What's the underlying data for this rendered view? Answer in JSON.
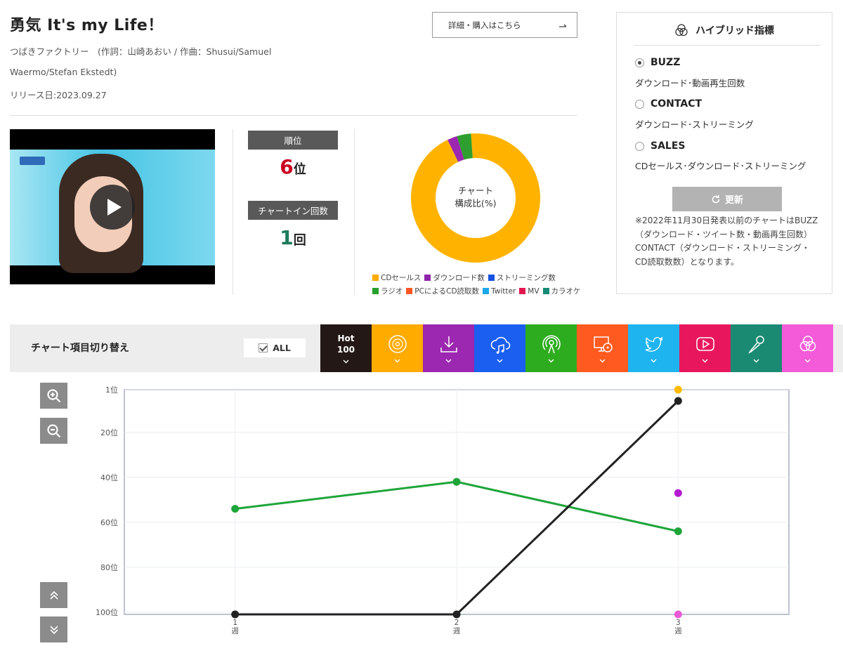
{
  "song": {
    "title": "勇気 It's my Life！",
    "credits_line1": "つばきファクトリー　(作詞：山崎あおい / 作曲：Shusui/Samuel",
    "credits_line2": "Waermo/Stefan Ekstedt)",
    "release": "リリース日:2023.09.27"
  },
  "buy_button": {
    "label": "詳細・購入はこちら",
    "icon": "arrow-icon"
  },
  "video": {
    "icon": "play-icon"
  },
  "rank": {
    "label": "順位",
    "value": "6",
    "unit": "位",
    "color": "#cc0022"
  },
  "chart_in": {
    "label": "チャートイン回数",
    "value": "1",
    "unit": "回",
    "color": "#1d7a5c"
  },
  "donut": {
    "center_line1": "チャート",
    "center_line2": "構成比(%)",
    "segments": [
      {
        "name": "CDセールス",
        "color": "#ffb300",
        "value": 94
      },
      {
        "name": "ダウンロード数",
        "color": "#9c27b0",
        "value": 2.5
      },
      {
        "name": "ラジオ",
        "color": "#2e9e2e",
        "value": 3.5
      }
    ],
    "legend": [
      {
        "label": "CDセールス",
        "color": "#ffab00"
      },
      {
        "label": "ダウンロード数",
        "color": "#8e24aa"
      },
      {
        "label": "ストリーミング数",
        "color": "#1550e0"
      },
      {
        "label": "ラジオ",
        "color": "#25a02b"
      },
      {
        "label": "PCによるCD読取数",
        "color": "#ff5722"
      },
      {
        "label": "Twitter",
        "color": "#1ea7e8"
      },
      {
        "label": "MV",
        "color": "#e2164f"
      },
      {
        "label": "カラオケ",
        "color": "#178a76"
      }
    ]
  },
  "hybrid": {
    "title": "ハイブリッド指標",
    "options": [
      {
        "label": "BUZZ",
        "desc": "ダウンロード･動画再生回数",
        "selected": true
      },
      {
        "label": "CONTACT",
        "desc": "ダウンロード･ストリーミング",
        "selected": false
      },
      {
        "label": "SALES",
        "desc": "CDセールス･ダウンロード･ストリーミング",
        "selected": false
      }
    ],
    "refresh_label": "更新",
    "note": "※2022年11月30日発表以前のチャートはBUZZ（ダウンロード・ツイート数・動画再生回数）CONTACT（ダウンロード・ストリーミング・CD読取数数）となります。"
  },
  "toolbar": {
    "label": "チャート項目切り替え",
    "all_label": "ALL",
    "tabs": [
      {
        "name": "hot100",
        "line1": "Hot",
        "line2": "100",
        "color": "#231815",
        "icon": "hot100-text"
      },
      {
        "name": "cd-sales",
        "color": "#ffab00",
        "icon": "disc-icon"
      },
      {
        "name": "download",
        "color": "#9c27b0",
        "icon": "download-icon"
      },
      {
        "name": "streaming",
        "color": "#1a5ff0",
        "icon": "cloud-music-icon"
      },
      {
        "name": "radio",
        "color": "#2eac1f",
        "icon": "radio-icon"
      },
      {
        "name": "pc-cd-read",
        "color": "#ff5a1f",
        "icon": "pc-disc-icon"
      },
      {
        "name": "twitter",
        "color": "#1eb4f0",
        "icon": "twitter-icon"
      },
      {
        "name": "mv",
        "color": "#e8175d",
        "icon": "video-play-icon"
      },
      {
        "name": "karaoke",
        "color": "#1a8a72",
        "icon": "microphone-icon"
      },
      {
        "name": "hybrid",
        "color": "#f35bd8",
        "icon": "hybrid-icon"
      }
    ]
  },
  "zoom": {
    "in_icon": "zoom-in-icon",
    "out_icon": "zoom-out-icon",
    "up_icon": "double-chevron-up-icon",
    "down_icon": "double-chevron-down-icon"
  },
  "chart_data": {
    "type": "line",
    "x": [
      1,
      2,
      3
    ],
    "x_tick_labels": [
      [
        "1",
        "週"
      ],
      [
        "2",
        "週"
      ],
      [
        "3",
        "週"
      ]
    ],
    "y_tick_labels": [
      "1位",
      "20位",
      "40位",
      "60位",
      "80位",
      "100位"
    ],
    "y_ticks": [
      1,
      20,
      40,
      60,
      80,
      100
    ],
    "ylim": [
      1,
      101
    ],
    "y_inverted": true,
    "grid": true,
    "series": [
      {
        "id": "radio",
        "color": "#1ea53a",
        "line": true,
        "points": [
          [
            1,
            54
          ],
          [
            2,
            42
          ],
          [
            3,
            64
          ]
        ]
      },
      {
        "id": "hot100",
        "color": "#222222",
        "line": true,
        "points": [
          [
            1,
            101
          ],
          [
            2,
            101
          ],
          [
            3,
            6
          ]
        ]
      },
      {
        "id": "cd-sales",
        "color": "#ffbb00",
        "line": false,
        "points": [
          [
            3,
            1
          ]
        ]
      },
      {
        "id": "download",
        "color": "#b51bd1",
        "line": false,
        "points": [
          [
            3,
            47
          ]
        ]
      },
      {
        "id": "hybrid",
        "color": "#ea5bd6",
        "line": false,
        "points": [
          [
            3,
            101
          ]
        ]
      }
    ]
  }
}
